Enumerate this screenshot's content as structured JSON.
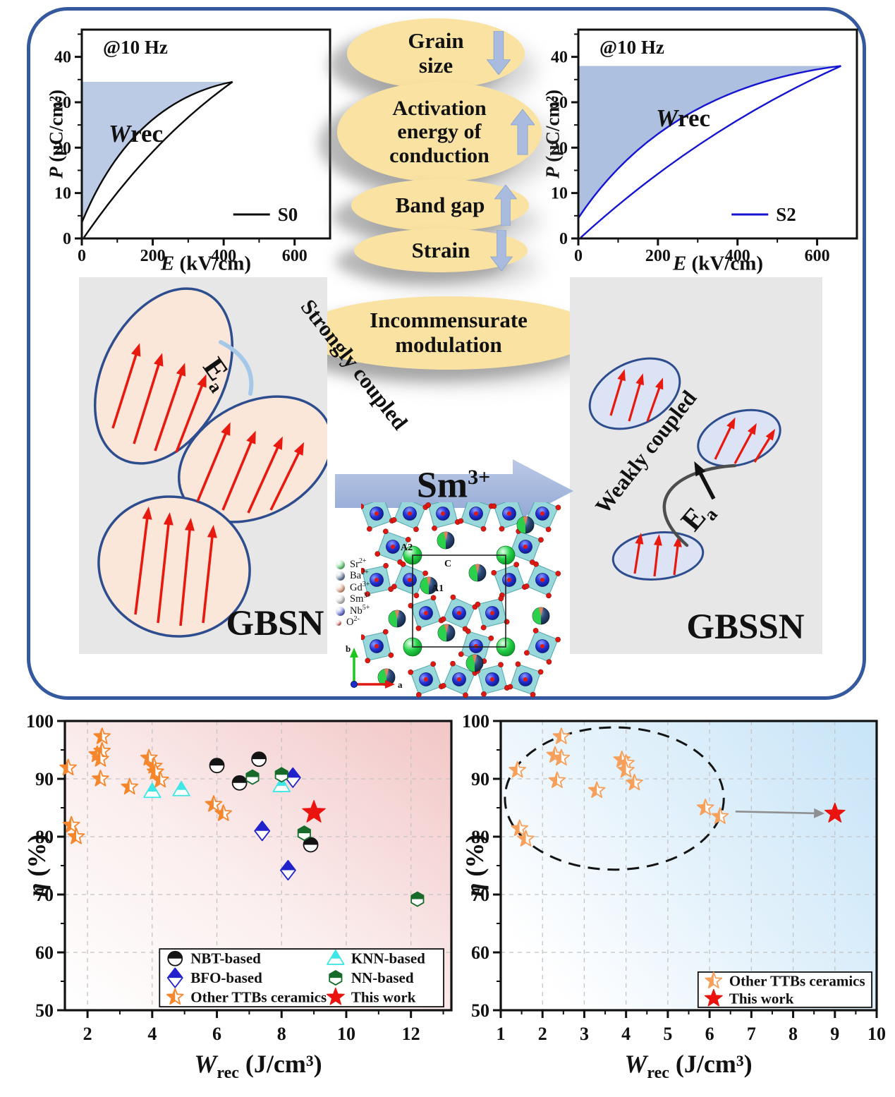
{
  "colors": {
    "frame_border": "#35599E",
    "bubble_fill": "#FAE3A2",
    "bubble_arrow": "#A9BCDF",
    "domain_arrow_red": "#E8190F",
    "panel_bg": "#E7E7E7"
  },
  "chart_data": [
    {
      "type": "line",
      "id": "pe-loop-s0",
      "annotation": "@10 Hz",
      "wrec_label": {
        "italic": "W",
        "rest": "rec"
      },
      "legend": "S0",
      "line_color": "#0B0B0B",
      "shade_color": "#B7C8E5",
      "xlabel": {
        "sym": "E",
        "units": " (kV/cm)"
      },
      "ylabel": {
        "sym": "P",
        "units": " (μC/cm²)"
      },
      "xlim": [
        0,
        700
      ],
      "ylim": [
        0,
        46
      ],
      "xticks": [
        0,
        200,
        400,
        600
      ],
      "xminor": [
        100,
        300,
        500
      ],
      "yticks": [
        0,
        10,
        20,
        30,
        40
      ],
      "yminor": [
        5,
        15,
        25,
        35,
        45
      ],
      "loop": {
        "e_max": 425,
        "p_max": 34.5,
        "p_r": 3.5
      }
    },
    {
      "type": "line",
      "id": "pe-loop-s2",
      "annotation": "@10 Hz",
      "wrec_label": {
        "italic": "W",
        "rest": "rec"
      },
      "legend": "S2",
      "line_color": "#1414D2",
      "shade_color": "#A9BDDD",
      "xlabel": {
        "sym": "E",
        "units": " (kV/cm)"
      },
      "ylabel": {
        "sym": "P",
        "units": " (μC/cm²)"
      },
      "xlim": [
        0,
        700
      ],
      "ylim": [
        0,
        46
      ],
      "xticks": [
        0,
        200,
        400,
        600
      ],
      "xminor": [
        100,
        300,
        500
      ],
      "yticks": [
        0,
        10,
        20,
        30,
        40
      ],
      "yminor": [
        5,
        15,
        25,
        35,
        45
      ],
      "loop": {
        "e_max": 660,
        "p_max": 38,
        "p_r": 4.5
      }
    },
    {
      "type": "scatter",
      "id": "eta-vs-wrec-all-ceramics",
      "xlabel": {
        "sym": "W",
        "sub": "rec",
        "units": " (J/cm³)"
      },
      "ylabel": {
        "sym": "η",
        "units": " (%)"
      },
      "xlim": [
        1.3,
        13.25
      ],
      "ylim": [
        50,
        100
      ],
      "xticks": [
        2,
        4,
        6,
        8,
        10,
        12
      ],
      "xminor": [
        3,
        5,
        7,
        9,
        11,
        13
      ],
      "yticks": [
        50,
        60,
        70,
        80,
        90,
        100
      ],
      "yminor": [
        55,
        65,
        75,
        85,
        95
      ],
      "ygrid": [
        60,
        70,
        80,
        90
      ],
      "bg": {
        "x1": 0,
        "y1": 1,
        "x2": 1,
        "y2": 0,
        "stops": [
          [
            0,
            "#ffffff"
          ],
          [
            0.45,
            "#fbeeee"
          ],
          [
            1,
            "#f2c6c6"
          ]
        ]
      },
      "series": [
        {
          "name": "NBT-based",
          "marker": "half-circle",
          "color": "#141414",
          "size": 10,
          "points": [
            [
              6.0,
              92.3
            ],
            [
              7.3,
              93.4
            ],
            [
              6.7,
              89.3
            ],
            [
              8.9,
              78.6
            ]
          ]
        },
        {
          "name": "KNN-based",
          "marker": "half-triangle",
          "color": "#3FE6E6",
          "size": 10,
          "points": [
            [
              4.0,
              87.8
            ],
            [
              4.9,
              88.1
            ],
            [
              8.0,
              88.8
            ]
          ]
        },
        {
          "name": "BFO-based",
          "marker": "half-diamond",
          "color": "#2222CC",
          "size": 10.5,
          "points": [
            [
              8.35,
              90.2
            ],
            [
              7.4,
              81.0
            ],
            [
              8.2,
              74.2
            ]
          ]
        },
        {
          "name": "NN-based",
          "marker": "half-hexagon",
          "color": "#166B2B",
          "size": 10,
          "points": [
            [
              7.1,
              90.3
            ],
            [
              8.0,
              90.7
            ],
            [
              8.7,
              80.6
            ],
            [
              12.2,
              69.2
            ]
          ]
        },
        {
          "name": "Other TTBs ceramics",
          "marker": "half-star",
          "color": "#F6862C",
          "size": 12,
          "points": [
            [
              1.4,
              91.9
            ],
            [
              2.45,
              97.3
            ],
            [
              2.3,
              94.2
            ],
            [
              2.45,
              94.8
            ],
            [
              2.4,
              93.4
            ],
            [
              2.4,
              90.0
            ],
            [
              3.3,
              88.6
            ],
            [
              3.9,
              93.6
            ],
            [
              4.05,
              92.2
            ],
            [
              4.1,
              91.2
            ],
            [
              4.25,
              89.8
            ],
            [
              5.9,
              85.6
            ],
            [
              6.2,
              84.0
            ],
            [
              1.5,
              82.0
            ],
            [
              1.65,
              80.0
            ]
          ]
        },
        {
          "name": "This work",
          "marker": "star",
          "color": "#EA1310",
          "size": 17,
          "points": [
            [
              9.0,
              84.2
            ]
          ]
        }
      ]
    },
    {
      "type": "scatter",
      "id": "eta-vs-wrec-ttb-ceramics",
      "xlabel": {
        "sym": "W",
        "sub": "rec",
        "units": " (J/cm³)"
      },
      "ylabel": {
        "sym": "η",
        "units": " (%)"
      },
      "xlim": [
        1,
        10
      ],
      "ylim": [
        50,
        100
      ],
      "xticks": [
        1,
        2,
        3,
        4,
        5,
        6,
        7,
        8,
        9,
        10
      ],
      "xminor": [
        1.5,
        2.5,
        3.5,
        4.5,
        5.5,
        6.5,
        7.5,
        8.5,
        9.5
      ],
      "yticks": [
        50,
        60,
        70,
        80,
        90,
        100
      ],
      "yminor": [
        55,
        65,
        75,
        85,
        95
      ],
      "ygrid": [
        60,
        70,
        80,
        90
      ],
      "bg": {
        "x1": 0,
        "y1": 0.7,
        "x2": 1,
        "y2": 0.1,
        "stops": [
          [
            0,
            "#ffffff"
          ],
          [
            0.5,
            "#e2f1fb"
          ],
          [
            1,
            "#c9e5f8"
          ]
        ]
      },
      "series": [
        {
          "name": "Other TTBs ceramics",
          "marker": "half-star",
          "color": "#F6A05C",
          "size": 12,
          "points": [
            [
              1.4,
              91.5
            ],
            [
              2.45,
              97.3
            ],
            [
              2.3,
              94.1
            ],
            [
              2.45,
              93.6
            ],
            [
              2.35,
              89.7
            ],
            [
              3.3,
              88.0
            ],
            [
              3.9,
              93.3
            ],
            [
              4.0,
              92.7
            ],
            [
              4.0,
              91.5
            ],
            [
              4.2,
              89.3
            ],
            [
              5.9,
              85.0
            ],
            [
              6.25,
              83.5
            ],
            [
              1.45,
              81.4
            ],
            [
              1.6,
              79.6
            ]
          ]
        },
        {
          "name": "This work",
          "marker": "star",
          "color": "#EA1310",
          "size": 15,
          "points": [
            [
              9.0,
              84.0
            ]
          ]
        }
      ],
      "annotations": [
        {
          "type": "dashed-ellipse",
          "cx": 3.72,
          "cy": 86.6,
          "rx": 2.62,
          "ry": 12.3
        },
        {
          "type": "arrow",
          "from": [
            6.62,
            84.35
          ],
          "to": [
            8.5,
            84.05
          ],
          "color": "#8F8F8F"
        }
      ]
    }
  ],
  "bubbles": [
    {
      "lines": [
        "Grain",
        "size"
      ],
      "arrow": "down"
    },
    {
      "lines": [
        "Activation",
        "energy of",
        "conduction"
      ],
      "arrow": "up"
    },
    {
      "lines": [
        "Band gap"
      ],
      "arrow": "up"
    },
    {
      "lines": [
        "Strain"
      ],
      "arrow": "down"
    },
    {
      "lines": [
        "Incommensurate",
        "modulation"
      ],
      "arrow": "none"
    }
  ],
  "panels": {
    "left": {
      "coupling": "Strongly coupled",
      "ea": {
        "sym": "E",
        "sub": "a"
      },
      "label": "GBSN"
    },
    "right": {
      "coupling": "Weakly coupled",
      "ea": {
        "sym": "E",
        "sub": "a"
      },
      "label": "GBSSN"
    },
    "transition": {
      "base": "Sm",
      "sup": "3+"
    }
  },
  "crystal": {
    "legend": [
      {
        "label": "Sr",
        "sup": "2+",
        "color": "#27C340"
      },
      {
        "label": "Ba",
        "sup": "2+",
        "color": "#274A77"
      },
      {
        "label": "Gd",
        "sup": "3+",
        "color": "#E0835A"
      },
      {
        "label": "Sm",
        "sup": "3+",
        "color": "#B5B5B5"
      },
      {
        "label": "Nb",
        "sup": "5+",
        "color": "#2330CF"
      },
      {
        "label": "O",
        "sup": "2-",
        "color": "#E02010"
      }
    ],
    "site_labels": [
      "A2",
      "C",
      "A1"
    ],
    "axes": {
      "vertical": "b",
      "horizontal": "a"
    }
  }
}
